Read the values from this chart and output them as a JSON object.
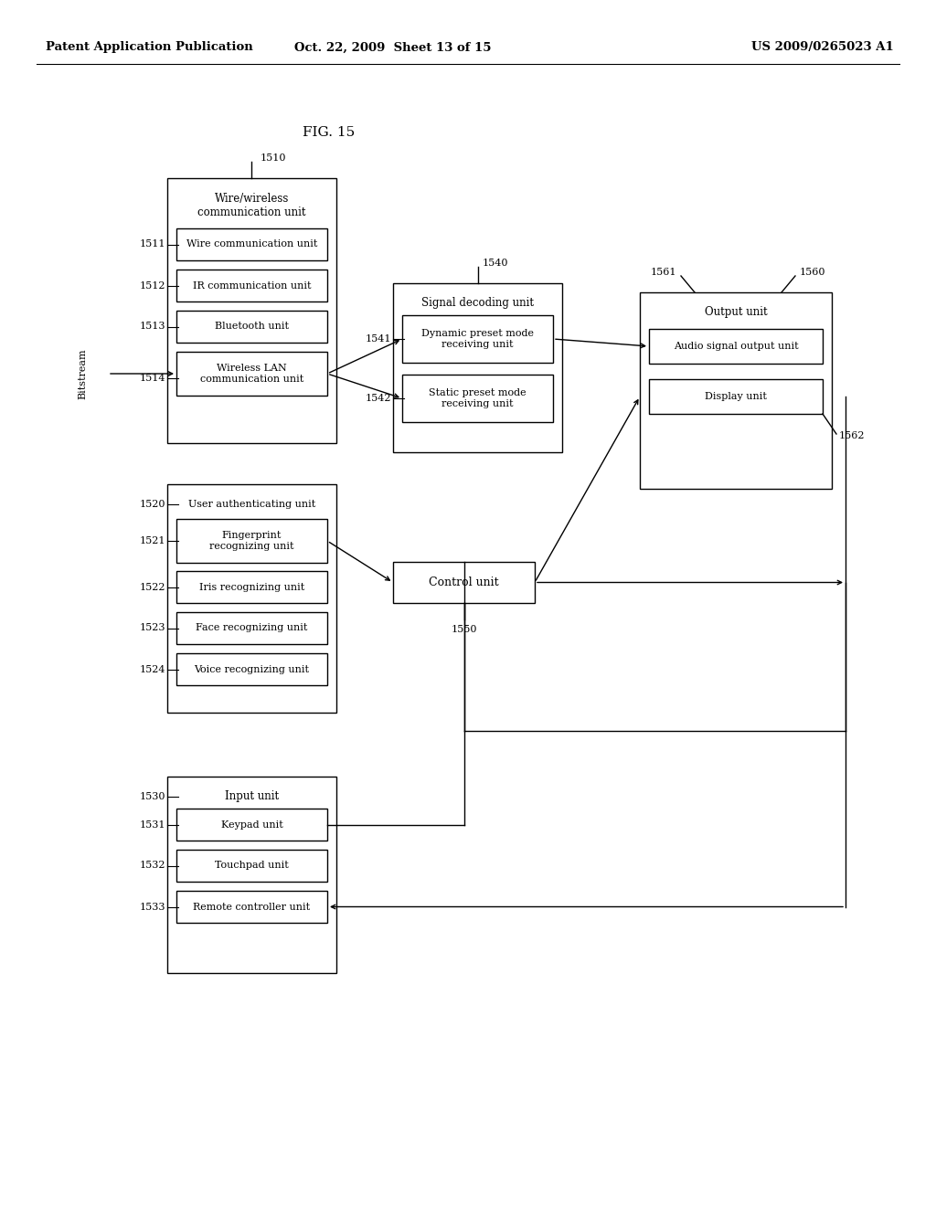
{
  "bg_color": "#ffffff",
  "header_left": "Patent Application Publication",
  "header_mid": "Oct. 22, 2009  Sheet 13 of 15",
  "header_right": "US 2009/0265023 A1",
  "fig_label": "FIG. 15"
}
